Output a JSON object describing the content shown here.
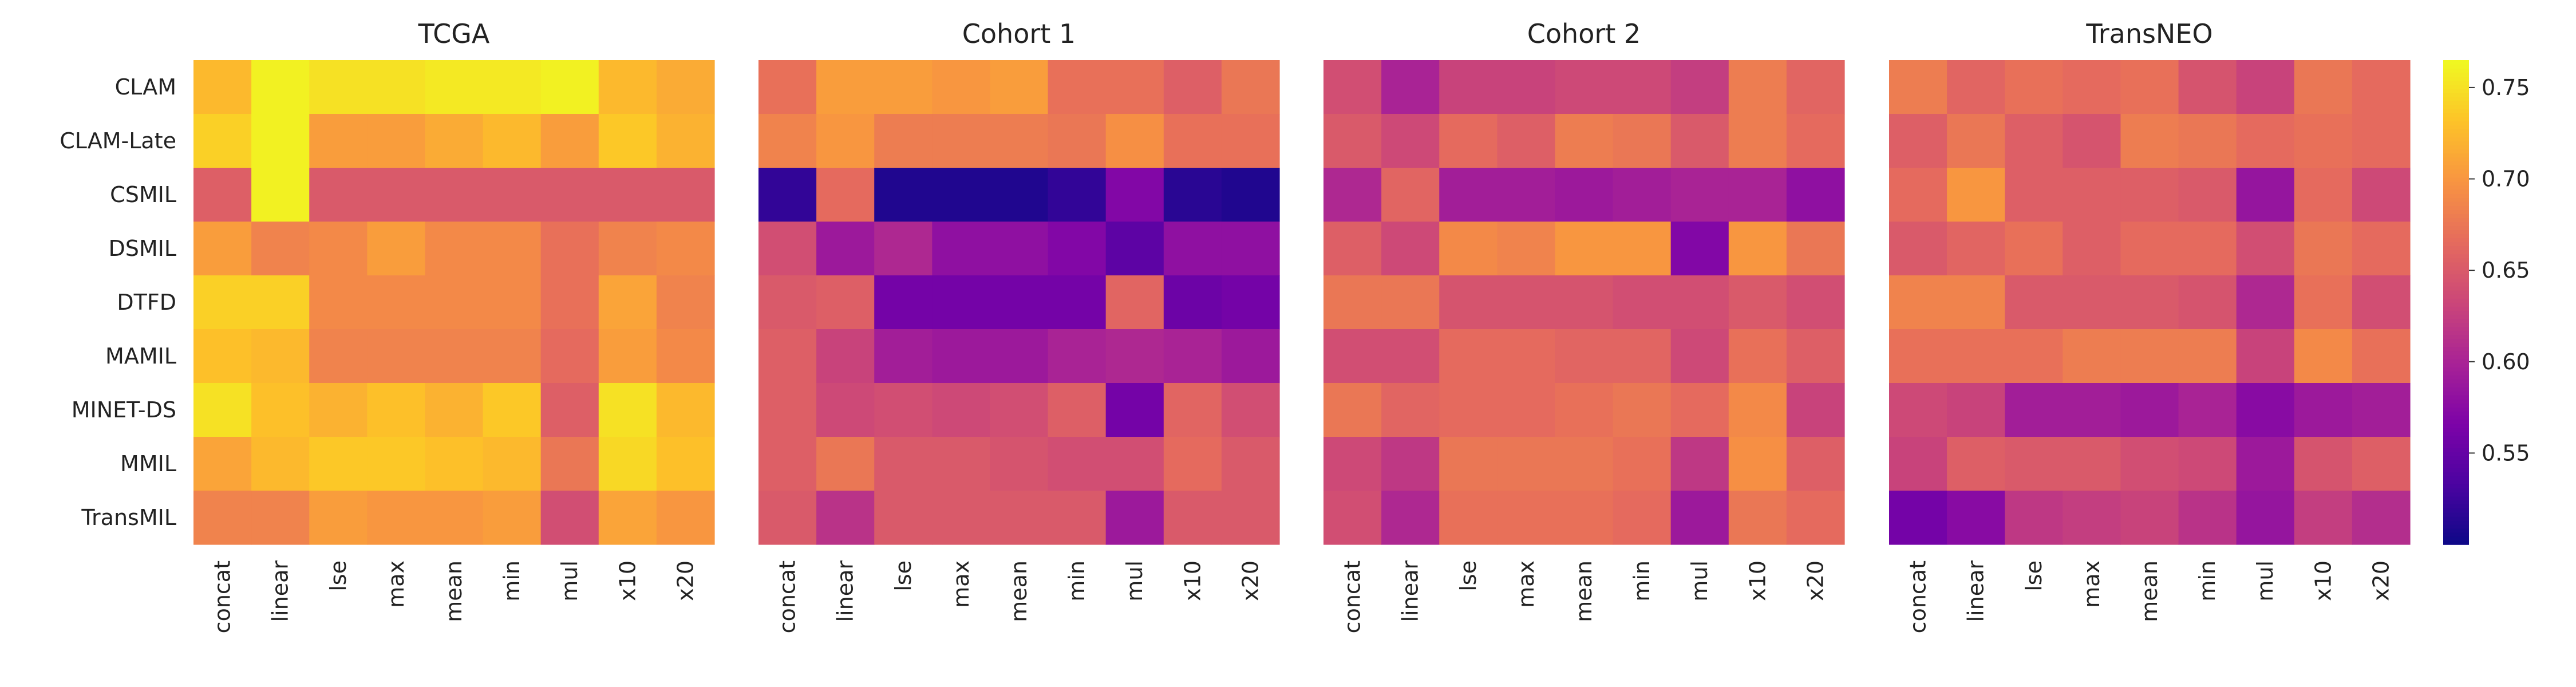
{
  "chart_data": {
    "type": "heatmap",
    "colormap": "plasma",
    "colorbar": {
      "vmin": 0.5,
      "vmax": 0.765,
      "ticks": [
        0.55,
        0.6,
        0.65,
        0.7,
        0.75
      ],
      "tick_labels": [
        "0.55",
        "0.60",
        "0.65",
        "0.70",
        "0.75"
      ],
      "placement": "right"
    },
    "rows": [
      "CLAM",
      "CLAM-Late",
      "CSMIL",
      "DSMIL",
      "DTFD",
      "MAMIL",
      "MINET-DS",
      "MMIL",
      "TransMIL"
    ],
    "columns": [
      "concat",
      "linear",
      "lse",
      "max",
      "mean",
      "min",
      "mul",
      "x10",
      "x20"
    ],
    "panels": [
      {
        "title": "TCGA",
        "values": [
          [
            0.725,
            0.76,
            0.75,
            0.75,
            0.755,
            0.755,
            0.76,
            0.725,
            0.715
          ],
          [
            0.74,
            0.76,
            0.705,
            0.705,
            0.715,
            0.725,
            0.705,
            0.735,
            0.72
          ],
          [
            0.655,
            0.76,
            0.65,
            0.65,
            0.65,
            0.65,
            0.65,
            0.65,
            0.65
          ],
          [
            0.705,
            0.685,
            0.69,
            0.705,
            0.69,
            0.69,
            0.67,
            0.685,
            0.69
          ],
          [
            0.74,
            0.74,
            0.69,
            0.69,
            0.69,
            0.69,
            0.67,
            0.71,
            0.685
          ],
          [
            0.73,
            0.725,
            0.685,
            0.685,
            0.685,
            0.685,
            0.665,
            0.705,
            0.69
          ],
          [
            0.75,
            0.73,
            0.72,
            0.73,
            0.72,
            0.735,
            0.655,
            0.75,
            0.725
          ],
          [
            0.71,
            0.725,
            0.735,
            0.735,
            0.73,
            0.725,
            0.675,
            0.745,
            0.73
          ],
          [
            0.685,
            0.685,
            0.705,
            0.7,
            0.7,
            0.705,
            0.64,
            0.71,
            0.7
          ]
        ]
      },
      {
        "title": "Cohort 1",
        "values": [
          [
            0.67,
            0.705,
            0.705,
            0.7,
            0.705,
            0.67,
            0.67,
            0.655,
            0.675
          ],
          [
            0.685,
            0.7,
            0.68,
            0.68,
            0.68,
            0.675,
            0.695,
            0.67,
            0.67
          ],
          [
            0.52,
            0.665,
            0.51,
            0.51,
            0.51,
            0.52,
            0.57,
            0.515,
            0.51
          ],
          [
            0.64,
            0.59,
            0.605,
            0.58,
            0.58,
            0.57,
            0.545,
            0.58,
            0.58
          ],
          [
            0.65,
            0.655,
            0.56,
            0.56,
            0.56,
            0.56,
            0.66,
            0.555,
            0.56
          ],
          [
            0.655,
            0.63,
            0.595,
            0.59,
            0.59,
            0.6,
            0.605,
            0.6,
            0.59
          ],
          [
            0.655,
            0.635,
            0.64,
            0.635,
            0.64,
            0.655,
            0.56,
            0.66,
            0.64
          ],
          [
            0.655,
            0.675,
            0.65,
            0.65,
            0.645,
            0.64,
            0.64,
            0.665,
            0.65
          ],
          [
            0.65,
            0.615,
            0.65,
            0.65,
            0.65,
            0.65,
            0.59,
            0.65,
            0.65
          ]
        ]
      },
      {
        "title": "Cohort 2",
        "values": [
          [
            0.64,
            0.6,
            0.63,
            0.63,
            0.635,
            0.635,
            0.625,
            0.68,
            0.66
          ],
          [
            0.65,
            0.635,
            0.665,
            0.655,
            0.68,
            0.675,
            0.65,
            0.68,
            0.665
          ],
          [
            0.605,
            0.66,
            0.595,
            0.595,
            0.59,
            0.595,
            0.6,
            0.6,
            0.58
          ],
          [
            0.655,
            0.635,
            0.69,
            0.685,
            0.7,
            0.7,
            0.57,
            0.7,
            0.675
          ],
          [
            0.675,
            0.675,
            0.645,
            0.645,
            0.645,
            0.64,
            0.64,
            0.65,
            0.64
          ],
          [
            0.64,
            0.64,
            0.665,
            0.665,
            0.66,
            0.66,
            0.635,
            0.67,
            0.655
          ],
          [
            0.675,
            0.66,
            0.665,
            0.665,
            0.67,
            0.675,
            0.665,
            0.69,
            0.63
          ],
          [
            0.635,
            0.62,
            0.675,
            0.675,
            0.675,
            0.67,
            0.62,
            0.695,
            0.655
          ],
          [
            0.64,
            0.605,
            0.67,
            0.67,
            0.67,
            0.665,
            0.59,
            0.675,
            0.665
          ]
        ]
      },
      {
        "title": "TransNEO",
        "values": [
          [
            0.68,
            0.66,
            0.67,
            0.665,
            0.67,
            0.645,
            0.63,
            0.675,
            0.665
          ],
          [
            0.655,
            0.675,
            0.655,
            0.645,
            0.68,
            0.675,
            0.665,
            0.67,
            0.665
          ],
          [
            0.665,
            0.7,
            0.655,
            0.655,
            0.655,
            0.65,
            0.585,
            0.665,
            0.635
          ],
          [
            0.65,
            0.66,
            0.67,
            0.655,
            0.665,
            0.665,
            0.64,
            0.675,
            0.665
          ],
          [
            0.685,
            0.685,
            0.65,
            0.65,
            0.65,
            0.645,
            0.605,
            0.67,
            0.64
          ],
          [
            0.67,
            0.67,
            0.67,
            0.68,
            0.68,
            0.68,
            0.63,
            0.69,
            0.67
          ],
          [
            0.635,
            0.63,
            0.595,
            0.595,
            0.59,
            0.6,
            0.575,
            0.59,
            0.595
          ],
          [
            0.63,
            0.655,
            0.65,
            0.65,
            0.64,
            0.635,
            0.59,
            0.645,
            0.655
          ],
          [
            0.56,
            0.575,
            0.62,
            0.625,
            0.63,
            0.615,
            0.585,
            0.625,
            0.61
          ]
        ]
      }
    ]
  }
}
